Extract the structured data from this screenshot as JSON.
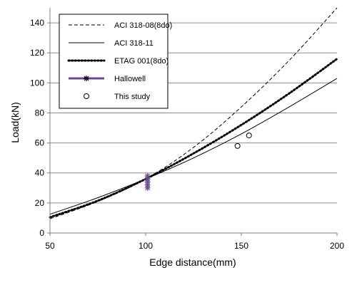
{
  "chart_data": {
    "type": "line",
    "xlabel": "Edge distance(mm)",
    "ylabel": "Load(kN)",
    "xlim": [
      50,
      200
    ],
    "ylim": [
      0,
      150
    ],
    "xticks": [
      50,
      100,
      150,
      200
    ],
    "yticks": [
      0,
      20,
      40,
      60,
      80,
      100,
      120,
      140
    ],
    "grid": "horizontal",
    "legend_position": "top-left",
    "series": [
      {
        "name": "ACI 318-08(8do)",
        "style": "dashed",
        "color": "#000000",
        "x": [
          50,
          75,
          100,
          125,
          150,
          175,
          200
        ],
        "y": [
          9.5,
          21,
          36,
          57,
          84,
          115,
          150
        ]
      },
      {
        "name": "ACI 318-11",
        "style": "solid",
        "color": "#000000",
        "x": [
          50,
          75,
          100,
          125,
          150,
          175,
          200
        ],
        "y": [
          12.5,
          23.5,
          36,
          50,
          66,
          84,
          103
        ]
      },
      {
        "name": "ETAG 001(8do)",
        "style": "dotted",
        "color": "#000000",
        "x": [
          50,
          75,
          100,
          125,
          150,
          175,
          200
        ],
        "y": [
          10.5,
          21.5,
          36,
          53,
          72,
          93,
          116
        ]
      },
      {
        "name": "Hallowell",
        "style": "star-markers",
        "color": "#6b4a8c",
        "x": [
          101,
          101,
          101,
          101,
          101
        ],
        "y": [
          38,
          36,
          34,
          32,
          30
        ]
      },
      {
        "name": "This study",
        "style": "circle-markers",
        "color": "#000000",
        "x": [
          148,
          154
        ],
        "y": [
          58,
          65
        ]
      }
    ]
  }
}
